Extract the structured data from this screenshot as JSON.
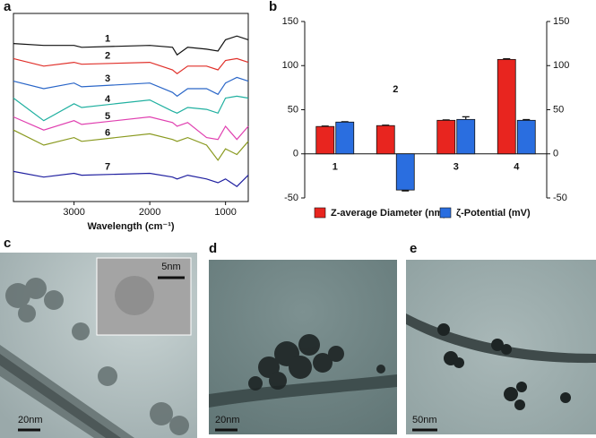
{
  "chart_data": [
    {
      "type": "line",
      "xlabel": "Wavelength (cm⁻¹)",
      "x": [
        3800,
        3400,
        3000,
        2900,
        2000,
        1700,
        1640,
        1500,
        1250,
        1100,
        1000,
        850,
        700
      ],
      "xlim": [
        3800,
        700
      ],
      "xticks": [
        3000,
        2000,
        1000
      ],
      "ylim": [
        0,
        100
      ],
      "series": [
        {
          "name": "1",
          "color": "#111111",
          "values": [
            84,
            83,
            83,
            82,
            83,
            82,
            78,
            82,
            81,
            80,
            86,
            88,
            86
          ]
        },
        {
          "name": "2",
          "color": "#e0302a",
          "values": [
            76,
            72,
            74,
            73,
            74,
            70,
            68,
            72,
            72,
            70,
            75,
            76,
            74
          ]
        },
        {
          "name": "3",
          "color": "#2a66c8",
          "values": [
            64,
            60,
            63,
            61,
            63,
            58,
            56,
            60,
            60,
            57,
            63,
            66,
            64
          ]
        },
        {
          "name": "4",
          "color": "#20b0a0",
          "values": [
            55,
            43,
            52,
            50,
            54,
            48,
            47,
            50,
            49,
            47,
            55,
            56,
            55
          ]
        },
        {
          "name": "5",
          "color": "#e040b0",
          "values": [
            45,
            38,
            43,
            41,
            45,
            42,
            40,
            42,
            34,
            33,
            40,
            33,
            40
          ]
        },
        {
          "name": "6",
          "color": "#8a9a20",
          "values": [
            38,
            30,
            34,
            32,
            36,
            33,
            32,
            34,
            30,
            22,
            28,
            25,
            32
          ]
        },
        {
          "name": "7",
          "color": "#2020a0",
          "values": [
            16,
            13,
            15,
            14,
            15,
            13,
            12,
            14,
            12,
            10,
            12,
            8,
            14
          ]
        }
      ]
    },
    {
      "type": "bar",
      "categories": [
        "1",
        "2",
        "3",
        "4"
      ],
      "ylim": [
        -50,
        150
      ],
      "yticks": [
        -50,
        0,
        50,
        100,
        150
      ],
      "y2lim": [
        -50,
        150
      ],
      "y2ticks": [
        -50,
        0,
        50,
        100,
        150
      ],
      "series": [
        {
          "name": "Z-average Diameter (nm)",
          "color": "#e8251f",
          "values": [
            31,
            32,
            38,
            107
          ],
          "errors": [
            0.5,
            0.5,
            0.5,
            0.8
          ]
        },
        {
          "name": "ζ-Potential (mV)",
          "color": "#2a6ee0",
          "axis": "y2",
          "values": [
            36,
            -41,
            39,
            38
          ],
          "errors": [
            0.5,
            1,
            3,
            0.8
          ]
        }
      ]
    }
  ],
  "figure": {
    "panel_labels": [
      "a",
      "b",
      "c",
      "d",
      "e"
    ],
    "scale_bars": [
      "5nm",
      "20nm",
      "20nm",
      "50nm"
    ]
  }
}
